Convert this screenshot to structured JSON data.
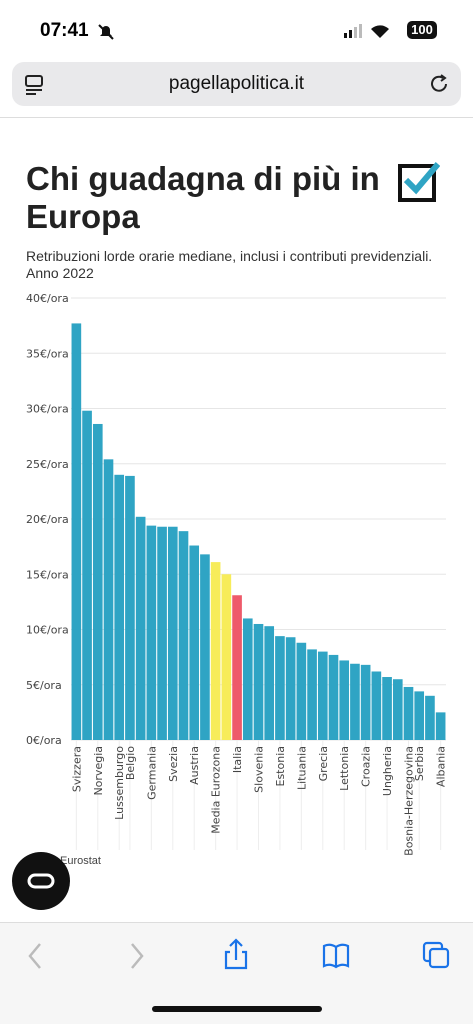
{
  "status_bar": {
    "time": "07:41",
    "battery": "100"
  },
  "address_bar": {
    "url": "pagellapolitica.it"
  },
  "article": {
    "title": "Chi guadagna di più in Europa",
    "subtitle": "Retribuzioni lorde orarie mediane, inclusi i contributi previdenziali. Anno 2022",
    "source": "Eurostat"
  },
  "chart_data": {
    "type": "bar",
    "categories": [
      "Svizzera",
      null,
      "Norvegia",
      null,
      "Lussemburgo",
      "Belgio",
      null,
      "Germania",
      null,
      "Svezia",
      null,
      "Austria",
      null,
      "Media Eurozona",
      null,
      "Italia",
      null,
      "Slovenia",
      null,
      "Estonia",
      null,
      "Lituania",
      null,
      "Grecia",
      null,
      "Lettonia",
      null,
      "Croazia",
      null,
      "Ungheria",
      null,
      "Bosnia-Herzegovina",
      "Serbia",
      null,
      "Albania"
    ],
    "values": [
      37.7,
      29.8,
      28.6,
      25.4,
      24.0,
      23.9,
      20.2,
      19.4,
      19.3,
      19.3,
      18.9,
      17.6,
      16.8,
      16.1,
      15.0,
      13.1,
      11.0,
      10.5,
      10.3,
      9.4,
      9.3,
      8.8,
      8.2,
      8.0,
      7.7,
      7.2,
      6.9,
      6.8,
      6.2,
      5.7,
      5.5,
      4.8,
      4.4,
      4.0,
      2.5
    ],
    "colors": [
      "#2fa4c4",
      "#2fa4c4",
      "#2fa4c4",
      "#2fa4c4",
      "#2fa4c4",
      "#2fa4c4",
      "#2fa4c4",
      "#2fa4c4",
      "#2fa4c4",
      "#2fa4c4",
      "#2fa4c4",
      "#2fa4c4",
      "#2fa4c4",
      "#f7ec5a",
      "#f7ec5a",
      "#ee5a6a",
      "#2fa4c4",
      "#2fa4c4",
      "#2fa4c4",
      "#2fa4c4",
      "#2fa4c4",
      "#2fa4c4",
      "#2fa4c4",
      "#2fa4c4",
      "#2fa4c4",
      "#2fa4c4",
      "#2fa4c4",
      "#2fa4c4",
      "#2fa4c4",
      "#2fa4c4",
      "#2fa4c4",
      "#2fa4c4",
      "#2fa4c4",
      "#2fa4c4",
      "#2fa4c4"
    ],
    "ylim": [
      0,
      40
    ],
    "yticks": [
      {
        "value": 0,
        "label": "0€/ora"
      },
      {
        "value": 5,
        "label": "5€/ora"
      },
      {
        "value": 10,
        "label": "10€/ora"
      },
      {
        "value": 15,
        "label": "15€/ora"
      },
      {
        "value": 20,
        "label": "20€/ora"
      },
      {
        "value": 25,
        "label": "25€/ora"
      },
      {
        "value": 30,
        "label": "30€/ora"
      },
      {
        "value": 35,
        "label": "35€/ora"
      },
      {
        "value": 40,
        "label": "40€/ora"
      }
    ],
    "grid": true
  }
}
